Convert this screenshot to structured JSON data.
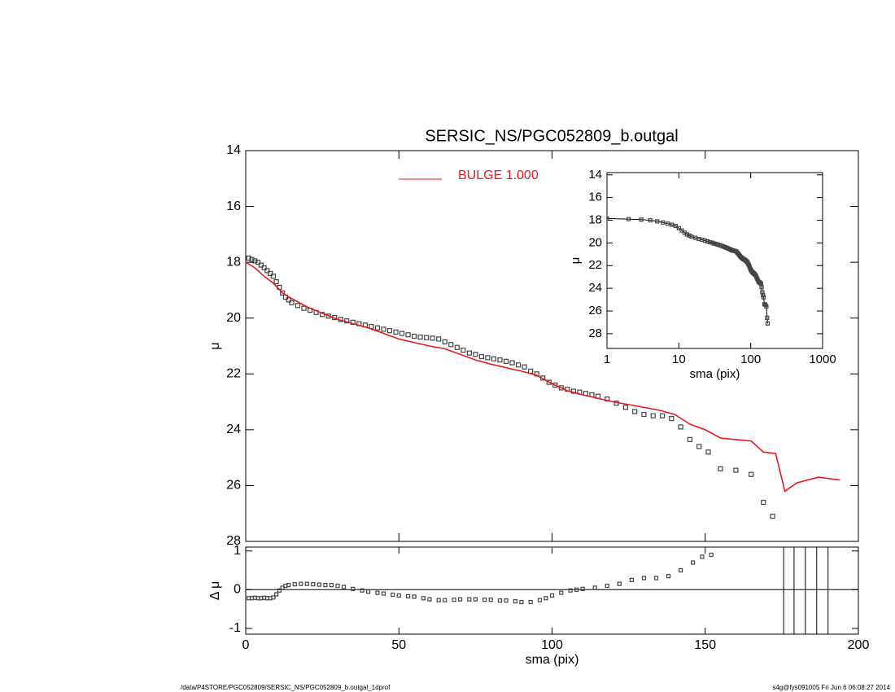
{
  "footer_left": "/data/P4STORE/PGC052809/SERSIC_NS/PGC052809_b.outgal_1dprof",
  "footer_right": "s4g@fys091005  Fri Jun  6 06:08:27 2014",
  "chart_data": [
    {
      "type": "scatter",
      "title": "SERSIC_NS/PGC052809_b.outgal",
      "ylabel": "μ",
      "xlim": [
        0,
        200
      ],
      "ylim": [
        28,
        14
      ],
      "xticks": [
        0,
        50,
        100,
        150,
        200
      ],
      "yticks": [
        14,
        16,
        18,
        20,
        22,
        24,
        26,
        28
      ],
      "point_color": "#444444",
      "x": [
        1,
        2,
        3,
        4,
        5,
        6,
        7,
        8,
        9,
        10,
        11,
        12,
        13,
        14,
        15,
        17,
        19,
        21,
        23,
        25,
        27,
        29,
        31,
        33,
        35,
        37,
        39,
        41,
        43,
        45,
        47,
        49,
        51,
        53,
        55,
        57,
        59,
        61,
        63,
        65,
        67,
        69,
        71,
        73,
        75,
        77,
        79,
        81,
        83,
        85,
        87,
        89,
        91,
        93,
        95,
        97,
        99,
        101,
        103,
        105,
        107,
        109,
        111,
        113,
        115,
        118,
        121,
        124,
        127,
        130,
        133,
        136,
        139,
        142,
        145,
        148,
        151,
        155,
        160,
        165,
        169,
        172
      ],
      "values": [
        17.85,
        17.9,
        17.95,
        18.0,
        18.1,
        18.2,
        18.3,
        18.4,
        18.5,
        18.7,
        18.9,
        19.1,
        19.25,
        19.35,
        19.45,
        19.55,
        19.65,
        19.72,
        19.8,
        19.87,
        19.93,
        19.98,
        20.05,
        20.1,
        20.15,
        20.2,
        20.25,
        20.3,
        20.35,
        20.4,
        20.45,
        20.5,
        20.55,
        20.6,
        20.65,
        20.68,
        20.7,
        20.72,
        20.75,
        20.85,
        20.95,
        21.05,
        21.15,
        21.25,
        21.3,
        21.38,
        21.42,
        21.46,
        21.5,
        21.55,
        21.6,
        21.68,
        21.75,
        21.9,
        22.0,
        22.15,
        22.3,
        22.4,
        22.5,
        22.55,
        22.62,
        22.65,
        22.7,
        22.75,
        22.8,
        22.9,
        23.05,
        23.2,
        23.35,
        23.45,
        23.5,
        23.5,
        23.6,
        23.9,
        24.35,
        24.6,
        24.8,
        25.4,
        25.45,
        25.6,
        26.6,
        27.1
      ],
      "series": [
        {
          "name": "BULGE  1.000",
          "color": "#e41a1c",
          "x": [
            0,
            3,
            6,
            9,
            12,
            15,
            20,
            30,
            40,
            50,
            60,
            65,
            70,
            75,
            80,
            90,
            95,
            100,
            105,
            110,
            120,
            125,
            130,
            135,
            140,
            145,
            150,
            155,
            160,
            165,
            169,
            173,
            176,
            180,
            187,
            194
          ],
          "values": [
            18.0,
            18.2,
            18.5,
            18.75,
            19.1,
            19.3,
            19.6,
            20.05,
            20.35,
            20.75,
            21.0,
            21.1,
            21.3,
            21.5,
            21.65,
            21.9,
            22.05,
            22.35,
            22.6,
            22.75,
            23.0,
            23.1,
            23.2,
            23.3,
            23.45,
            23.8,
            24.0,
            24.3,
            24.35,
            24.4,
            24.8,
            24.85,
            26.2,
            25.9,
            25.7,
            25.8
          ]
        }
      ]
    },
    {
      "type": "scatter",
      "log_x": true,
      "xlabel": "sma (pix)",
      "ylabel": "μ",
      "xlim": [
        1,
        1000
      ],
      "ylim": [
        29.3,
        13.8
      ],
      "xticks": [
        1,
        10,
        100,
        1000
      ],
      "yticks": [
        14,
        16,
        18,
        20,
        22,
        24,
        26,
        28
      ]
    },
    {
      "type": "scatter",
      "xlabel": "sma (pix)",
      "ylabel": "Δ μ",
      "xlim": [
        0,
        200
      ],
      "ylim": [
        -1.15,
        1.1
      ],
      "xticks": [
        0,
        50,
        100,
        150,
        200
      ],
      "yticks": [
        -1,
        0,
        1
      ],
      "hline": 0,
      "x": [
        1,
        2,
        3,
        4,
        5,
        6,
        7,
        8,
        9,
        10,
        11,
        12,
        13,
        14,
        16,
        18,
        20,
        22,
        24,
        26,
        28,
        30,
        32,
        35,
        38,
        40,
        43,
        45,
        48,
        50,
        53,
        55,
        58,
        60,
        63,
        65,
        68,
        70,
        73,
        75,
        78,
        80,
        83,
        85,
        88,
        90,
        93,
        96,
        98,
        100,
        103,
        106,
        108,
        110,
        114,
        118,
        122,
        126,
        130,
        134,
        138,
        142,
        146,
        149,
        152
      ],
      "values": [
        -0.22,
        -0.22,
        -0.21,
        -0.22,
        -0.22,
        -0.21,
        -0.22,
        -0.22,
        -0.2,
        -0.12,
        -0.02,
        0.05,
        0.1,
        0.12,
        0.14,
        0.15,
        0.15,
        0.14,
        0.13,
        0.12,
        0.12,
        0.1,
        0.07,
        0.02,
        -0.02,
        -0.05,
        -0.08,
        -0.1,
        -0.13,
        -0.15,
        -0.17,
        -0.18,
        -0.22,
        -0.25,
        -0.27,
        -0.27,
        -0.26,
        -0.25,
        -0.25,
        -0.25,
        -0.26,
        -0.26,
        -0.28,
        -0.28,
        -0.3,
        -0.32,
        -0.32,
        -0.27,
        -0.22,
        -0.15,
        -0.08,
        -0.02,
        0.0,
        0.02,
        0.05,
        0.1,
        0.15,
        0.25,
        0.3,
        0.3,
        0.35,
        0.5,
        0.7,
        0.85,
        0.9
      ],
      "vlines": [
        175.6,
        179,
        182.7,
        186.4,
        190.1
      ]
    }
  ]
}
